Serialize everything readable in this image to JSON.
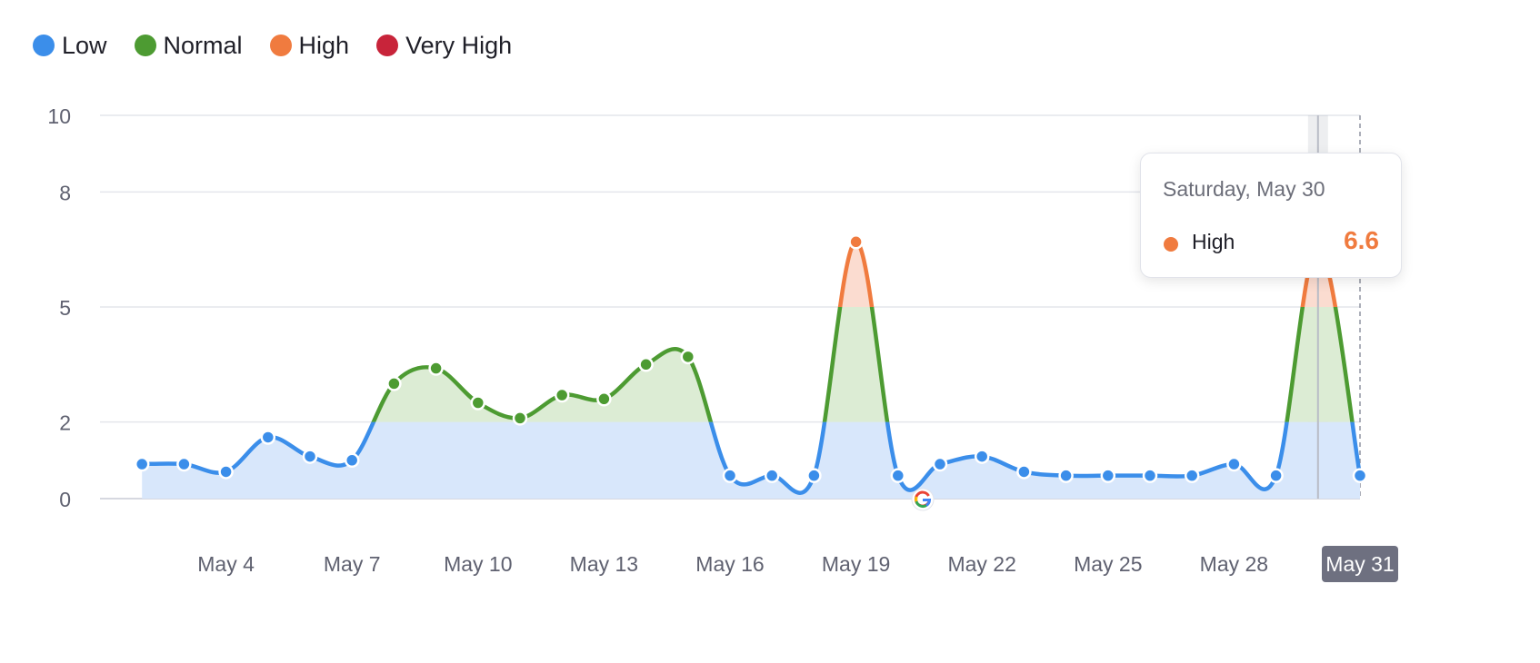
{
  "legend": [
    {
      "label": "Low",
      "color": "#3b8eea"
    },
    {
      "label": "Normal",
      "color": "#4d9b32"
    },
    {
      "label": "High",
      "color": "#f07b3f"
    },
    {
      "label": "Very High",
      "color": "#c8243a"
    }
  ],
  "tooltip": {
    "date": "Saturday, May 30",
    "level": "High",
    "value": "6.6",
    "color": "#f07b3f"
  },
  "chart_data": {
    "type": "area",
    "ylim": [
      0,
      10
    ],
    "yticks": [
      0,
      2,
      5,
      8,
      10
    ],
    "x": [
      1,
      31
    ],
    "xticks": [
      {
        "day": 4,
        "label": "May 4"
      },
      {
        "day": 7,
        "label": "May 7"
      },
      {
        "day": 10,
        "label": "May 10"
      },
      {
        "day": 13,
        "label": "May 13"
      },
      {
        "day": 16,
        "label": "May 16"
      },
      {
        "day": 19,
        "label": "May 19"
      },
      {
        "day": 22,
        "label": "May 22"
      },
      {
        "day": 25,
        "label": "May 25"
      },
      {
        "day": 28,
        "label": "May 28"
      },
      {
        "day": 31,
        "label": "May 31",
        "highlighted": true
      }
    ],
    "thresholds": {
      "low_max": 2,
      "normal_max": 5,
      "high_max": 8
    },
    "series": [
      {
        "x": [
          2,
          3,
          4,
          5,
          6,
          7,
          8,
          9,
          10,
          11,
          12,
          13,
          14,
          15,
          16,
          17,
          18,
          19,
          20,
          21,
          22,
          23,
          24,
          25,
          26,
          27,
          28,
          29,
          30,
          31
        ],
        "values": [
          0.9,
          0.9,
          0.7,
          1.6,
          1.1,
          1.0,
          3.0,
          3.4,
          2.5,
          2.1,
          2.7,
          2.6,
          3.5,
          3.7,
          0.6,
          0.6,
          0.6,
          6.7,
          0.6,
          0.9,
          1.1,
          0.7,
          0.6,
          0.6,
          0.6,
          0.6,
          0.9,
          0.6,
          6.6,
          0.6
        ]
      }
    ],
    "selected_day": 30,
    "marker_day": 21,
    "marker_icon": "google-icon",
    "colors": {
      "low": "#3b8eea",
      "normal": "#4d9b32",
      "high": "#f07b3f",
      "very_high": "#c8243a"
    }
  }
}
